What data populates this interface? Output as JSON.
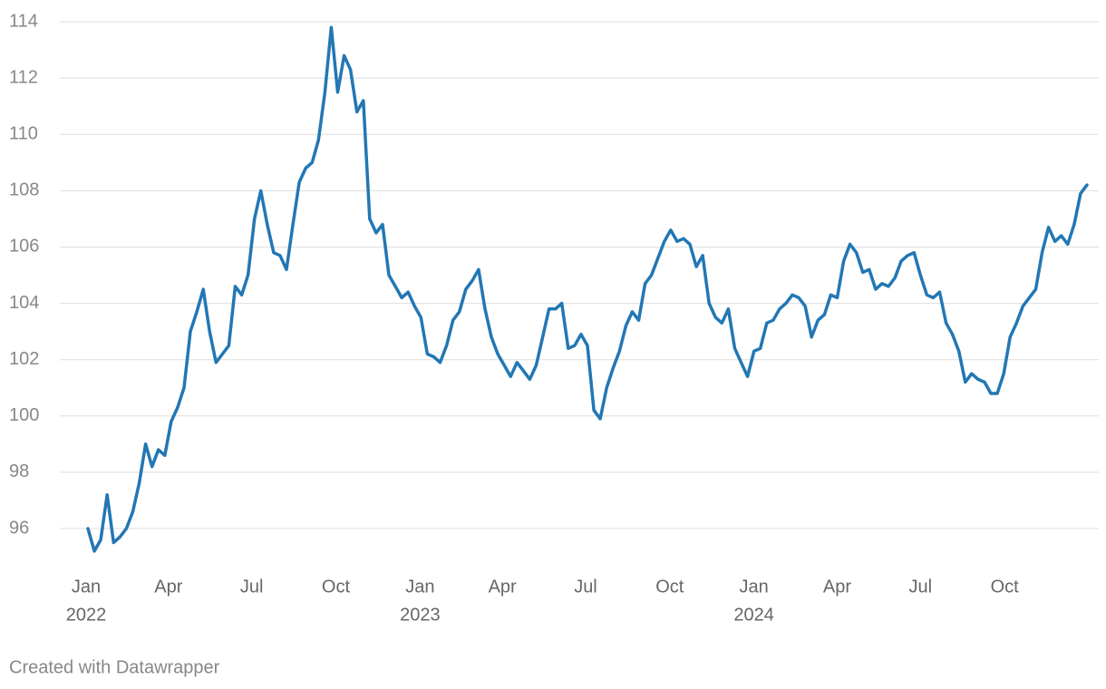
{
  "chart_data": {
    "type": "line",
    "footer": "Created with Datawrapper",
    "x": [
      "2022-01-03",
      "2022-01-10",
      "2022-01-17",
      "2022-01-24",
      "2022-01-31",
      "2022-02-07",
      "2022-02-14",
      "2022-02-21",
      "2022-02-28",
      "2022-03-07",
      "2022-03-14",
      "2022-03-21",
      "2022-03-28",
      "2022-04-04",
      "2022-04-11",
      "2022-04-18",
      "2022-04-25",
      "2022-05-02",
      "2022-05-09",
      "2022-05-16",
      "2022-05-23",
      "2022-05-30",
      "2022-06-06",
      "2022-06-13",
      "2022-06-20",
      "2022-06-27",
      "2022-07-04",
      "2022-07-11",
      "2022-07-18",
      "2022-07-25",
      "2022-08-01",
      "2022-08-08",
      "2022-08-15",
      "2022-08-22",
      "2022-08-29",
      "2022-09-05",
      "2022-09-12",
      "2022-09-19",
      "2022-09-26",
      "2022-10-03",
      "2022-10-10",
      "2022-10-17",
      "2022-10-24",
      "2022-10-31",
      "2022-11-07",
      "2022-11-14",
      "2022-11-21",
      "2022-11-28",
      "2022-12-05",
      "2022-12-12",
      "2022-12-19",
      "2022-12-26",
      "2023-01-02",
      "2023-01-09",
      "2023-01-16",
      "2023-01-23",
      "2023-01-30",
      "2023-02-06",
      "2023-02-13",
      "2023-02-20",
      "2023-02-27",
      "2023-03-06",
      "2023-03-13",
      "2023-03-20",
      "2023-03-27",
      "2023-04-03",
      "2023-04-10",
      "2023-04-17",
      "2023-04-24",
      "2023-05-01",
      "2023-05-08",
      "2023-05-15",
      "2023-05-22",
      "2023-05-29",
      "2023-06-05",
      "2023-06-12",
      "2023-06-19",
      "2023-06-26",
      "2023-07-03",
      "2023-07-10",
      "2023-07-17",
      "2023-07-24",
      "2023-07-31",
      "2023-08-07",
      "2023-08-14",
      "2023-08-21",
      "2023-08-28",
      "2023-09-04",
      "2023-09-11",
      "2023-09-18",
      "2023-09-25",
      "2023-10-02",
      "2023-10-09",
      "2023-10-16",
      "2023-10-23",
      "2023-10-30",
      "2023-11-06",
      "2023-11-13",
      "2023-11-20",
      "2023-11-27",
      "2023-12-04",
      "2023-12-11",
      "2023-12-18",
      "2023-12-25",
      "2024-01-01",
      "2024-01-08",
      "2024-01-15",
      "2024-01-22",
      "2024-01-29",
      "2024-02-05",
      "2024-02-12",
      "2024-02-19",
      "2024-02-26",
      "2024-03-04",
      "2024-03-11",
      "2024-03-18",
      "2024-03-25",
      "2024-04-01",
      "2024-04-08",
      "2024-04-15",
      "2024-04-22",
      "2024-04-29",
      "2024-05-06",
      "2024-05-13",
      "2024-05-20",
      "2024-05-27",
      "2024-06-03",
      "2024-06-10",
      "2024-06-17",
      "2024-06-24",
      "2024-07-01",
      "2024-07-08",
      "2024-07-15",
      "2024-07-22",
      "2024-07-29",
      "2024-08-05",
      "2024-08-12",
      "2024-08-19",
      "2024-08-26",
      "2024-09-02",
      "2024-09-09",
      "2024-09-16",
      "2024-09-23",
      "2024-09-30",
      "2024-10-07",
      "2024-10-14",
      "2024-10-21",
      "2024-10-28",
      "2024-11-04",
      "2024-11-11",
      "2024-11-18",
      "2024-11-25",
      "2024-12-02",
      "2024-12-09",
      "2024-12-16",
      "2024-12-23",
      "2024-12-30"
    ],
    "series": [
      {
        "color": "#2277b4",
        "values": [
          96.0,
          95.2,
          95.6,
          97.2,
          95.5,
          95.7,
          96.0,
          96.6,
          97.6,
          99.0,
          98.2,
          98.8,
          98.6,
          99.8,
          100.3,
          101.0,
          103.0,
          103.7,
          104.5,
          103.0,
          101.9,
          102.2,
          102.5,
          104.6,
          104.3,
          105.0,
          107.0,
          108.0,
          106.8,
          105.8,
          105.7,
          105.2,
          106.8,
          108.3,
          108.8,
          109.0,
          109.8,
          111.5,
          113.8,
          111.5,
          112.8,
          112.3,
          110.8,
          111.2,
          107.0,
          106.5,
          106.8,
          105.0,
          104.6,
          104.2,
          104.4,
          103.9,
          103.5,
          102.2,
          102.1,
          101.9,
          102.5,
          103.4,
          103.7,
          104.5,
          104.8,
          105.2,
          103.8,
          102.8,
          102.2,
          101.8,
          101.4,
          101.9,
          101.6,
          101.3,
          101.8,
          102.8,
          103.8,
          103.8,
          104.0,
          102.4,
          102.5,
          102.9,
          102.5,
          100.2,
          99.9,
          101.0,
          101.7,
          102.3,
          103.2,
          103.7,
          103.4,
          104.7,
          105.0,
          105.6,
          106.2,
          106.6,
          106.2,
          106.3,
          106.1,
          105.3,
          105.7,
          104.0,
          103.5,
          103.3,
          103.8,
          102.4,
          101.9,
          101.4,
          102.3,
          102.4,
          103.3,
          103.4,
          103.8,
          104.0,
          104.3,
          104.2,
          103.9,
          102.8,
          103.4,
          103.6,
          104.3,
          104.2,
          105.5,
          106.1,
          105.8,
          105.1,
          105.2,
          104.5,
          104.7,
          104.6,
          104.9,
          105.5,
          105.7,
          105.8,
          105.0,
          104.3,
          104.2,
          104.4,
          103.3,
          102.9,
          102.3,
          101.2,
          101.5,
          101.3,
          101.2,
          100.8,
          100.8,
          101.5,
          102.8,
          103.3,
          103.9,
          104.2,
          104.5,
          105.8,
          106.7,
          106.2,
          106.4,
          106.1,
          106.8,
          107.9,
          108.2
        ]
      }
    ],
    "xlim": [
      "2022-01-01",
      "2025-01-01"
    ],
    "xticks": [
      {
        "value": "2022-01-01",
        "label": "Jan",
        "year": "2022"
      },
      {
        "value": "2022-04-01",
        "label": "Apr"
      },
      {
        "value": "2022-07-01",
        "label": "Jul"
      },
      {
        "value": "2022-10-01",
        "label": "Oct"
      },
      {
        "value": "2023-01-01",
        "label": "Jan",
        "year": "2023"
      },
      {
        "value": "2023-04-01",
        "label": "Apr"
      },
      {
        "value": "2023-07-01",
        "label": "Jul"
      },
      {
        "value": "2023-10-01",
        "label": "Oct"
      },
      {
        "value": "2024-01-01",
        "label": "Jan",
        "year": "2024"
      },
      {
        "value": "2024-04-01",
        "label": "Apr"
      },
      {
        "value": "2024-07-01",
        "label": "Jul"
      },
      {
        "value": "2024-10-01",
        "label": "Oct"
      }
    ],
    "ylim": [
      94.5,
      114.5
    ],
    "yticks": [
      96,
      98,
      100,
      102,
      104,
      106,
      108,
      110,
      112,
      114
    ],
    "grid": true
  }
}
